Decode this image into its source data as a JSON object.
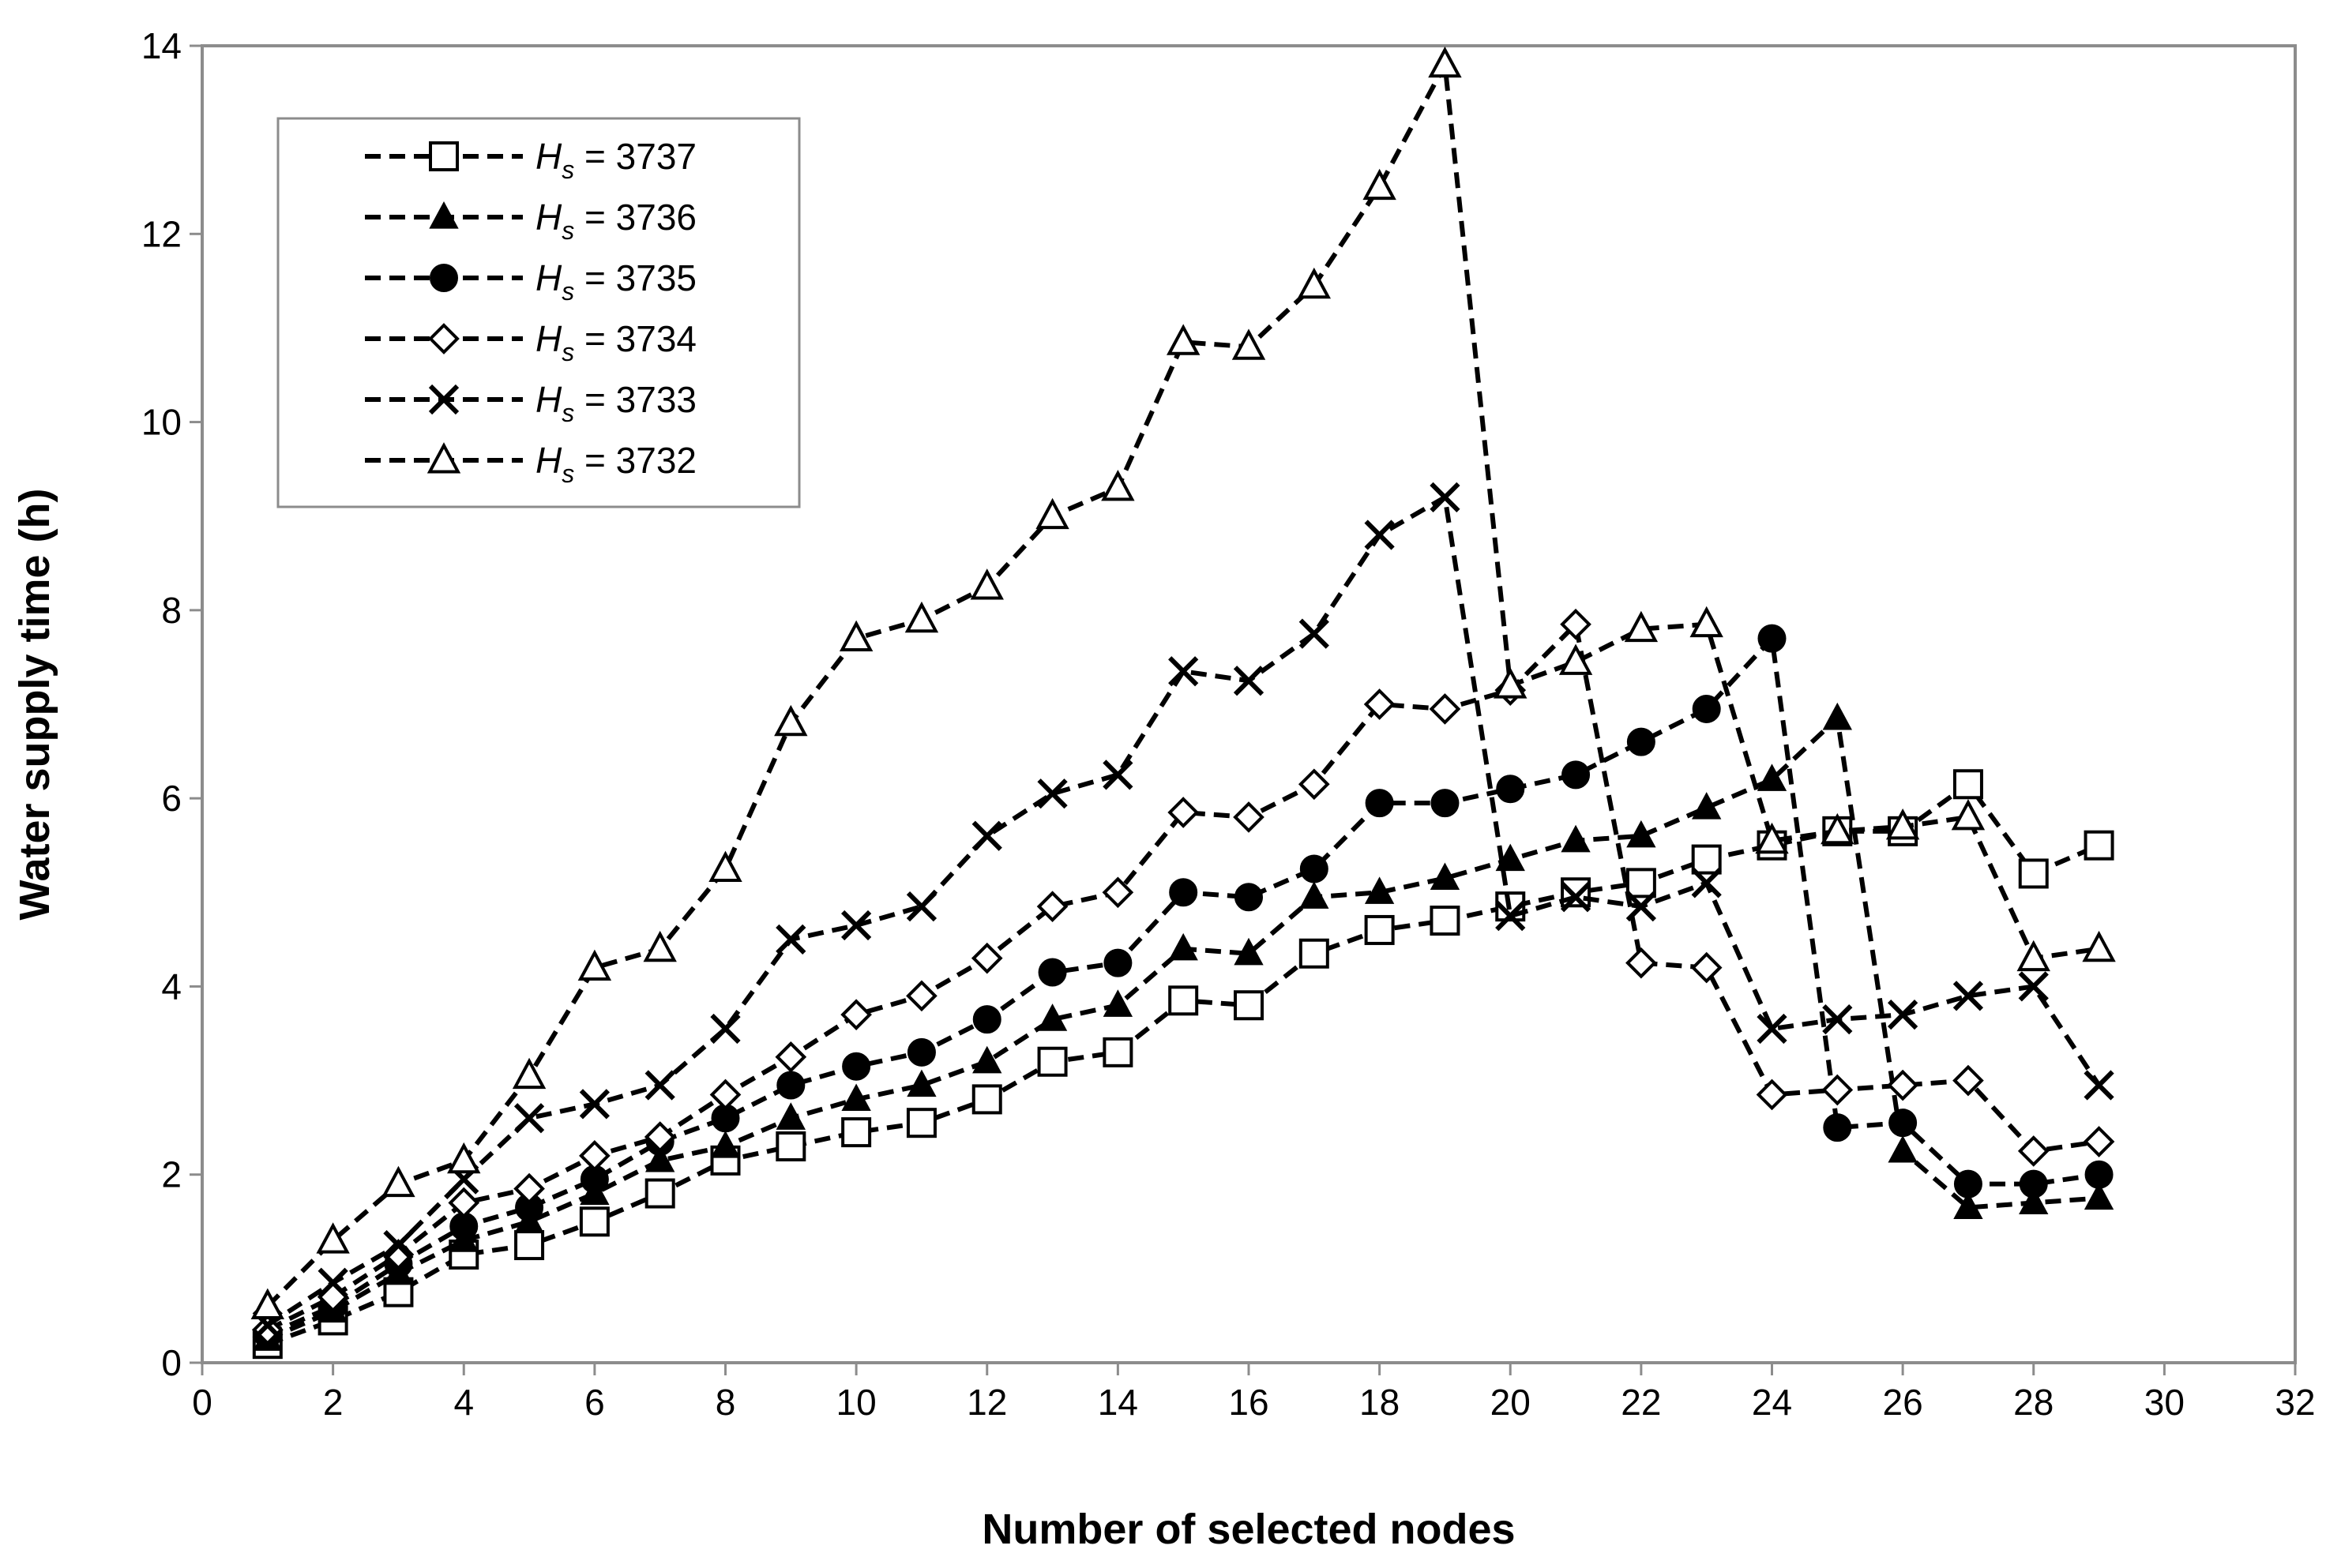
{
  "chart_data": {
    "type": "line",
    "xlabel": "Number of selected nodes",
    "ylabel": "Water supply time (h)",
    "xlim": [
      0,
      32
    ],
    "ylim": [
      0,
      14
    ],
    "xticks": [
      0,
      2,
      4,
      6,
      8,
      10,
      12,
      14,
      16,
      18,
      20,
      22,
      24,
      26,
      28,
      30,
      32
    ],
    "yticks": [
      0,
      2,
      4,
      6,
      8,
      10,
      12,
      14
    ],
    "grid": false,
    "legend_position": "top-left",
    "line_style": "dashed",
    "line_color": "#000000",
    "x": [
      1,
      2,
      3,
      4,
      5,
      6,
      7,
      8,
      9,
      10,
      11,
      12,
      13,
      14,
      15,
      16,
      17,
      18,
      19,
      20,
      21,
      22,
      23,
      24,
      25,
      26,
      27,
      28,
      29
    ],
    "series": [
      {
        "name": "3737",
        "label_var": "H",
        "label_sub": "s",
        "label_eq": " = 3737",
        "marker": "square-open",
        "values": [
          0.2,
          0.45,
          0.75,
          1.15,
          1.25,
          1.5,
          1.8,
          2.15,
          2.3,
          2.45,
          2.55,
          2.8,
          3.2,
          3.3,
          3.85,
          3.8,
          4.35,
          4.6,
          4.7,
          4.85,
          5.0,
          5.1,
          5.35,
          5.5,
          5.65,
          5.65,
          6.15,
          5.2,
          5.5
        ]
      },
      {
        "name": "3736",
        "label_var": "H",
        "label_sub": "s",
        "label_eq": " = 3736",
        "marker": "triangle-filled",
        "values": [
          0.25,
          0.55,
          0.95,
          1.3,
          1.5,
          1.8,
          2.15,
          2.3,
          2.6,
          2.8,
          2.95,
          3.2,
          3.65,
          3.8,
          4.4,
          4.35,
          4.95,
          5.0,
          5.15,
          5.35,
          5.55,
          5.6,
          5.9,
          6.2,
          6.85,
          2.25,
          1.65,
          1.7,
          1.75
        ]
      },
      {
        "name": "3735",
        "label_var": "H",
        "label_sub": "s",
        "label_eq": " = 3735",
        "marker": "circle-filled",
        "values": [
          0.3,
          0.6,
          1.05,
          1.45,
          1.65,
          1.95,
          2.35,
          2.6,
          2.95,
          3.15,
          3.3,
          3.65,
          4.15,
          4.25,
          5.0,
          4.95,
          5.25,
          5.95,
          5.95,
          6.1,
          6.25,
          6.6,
          6.95,
          7.7,
          2.5,
          2.55,
          1.9,
          1.9,
          2.0
        ]
      },
      {
        "name": "3734",
        "label_var": "H",
        "label_sub": "s",
        "label_eq": " = 3734",
        "marker": "diamond-open",
        "values": [
          0.35,
          0.7,
          1.15,
          1.7,
          1.85,
          2.2,
          2.4,
          2.85,
          3.25,
          3.7,
          3.9,
          4.3,
          4.85,
          5.0,
          5.85,
          5.8,
          6.15,
          7.0,
          6.95,
          7.15,
          7.85,
          4.25,
          4.2,
          2.85,
          2.9,
          2.95,
          3.0,
          2.25,
          2.35
        ]
      },
      {
        "name": "3733",
        "label_var": "H",
        "label_sub": "s",
        "label_eq": " = 3733",
        "marker": "x",
        "values": [
          0.4,
          0.85,
          1.25,
          1.95,
          2.6,
          2.75,
          2.95,
          3.55,
          4.5,
          4.65,
          4.85,
          5.6,
          6.05,
          6.25,
          7.35,
          7.25,
          7.75,
          8.8,
          9.2,
          4.75,
          4.95,
          4.85,
          5.1,
          3.55,
          3.65,
          3.7,
          3.9,
          4.0,
          2.95
        ]
      },
      {
        "name": "3732",
        "label_var": "H",
        "label_sub": "s",
        "label_eq": " = 3732",
        "marker": "triangle-open",
        "values": [
          0.6,
          1.3,
          1.9,
          2.15,
          3.05,
          4.2,
          4.4,
          5.25,
          6.8,
          7.7,
          7.9,
          8.25,
          9.0,
          9.3,
          10.85,
          10.8,
          11.45,
          12.5,
          13.8,
          7.2,
          7.45,
          7.8,
          7.85,
          5.55,
          5.65,
          5.7,
          5.8,
          4.3,
          4.4
        ]
      }
    ]
  }
}
